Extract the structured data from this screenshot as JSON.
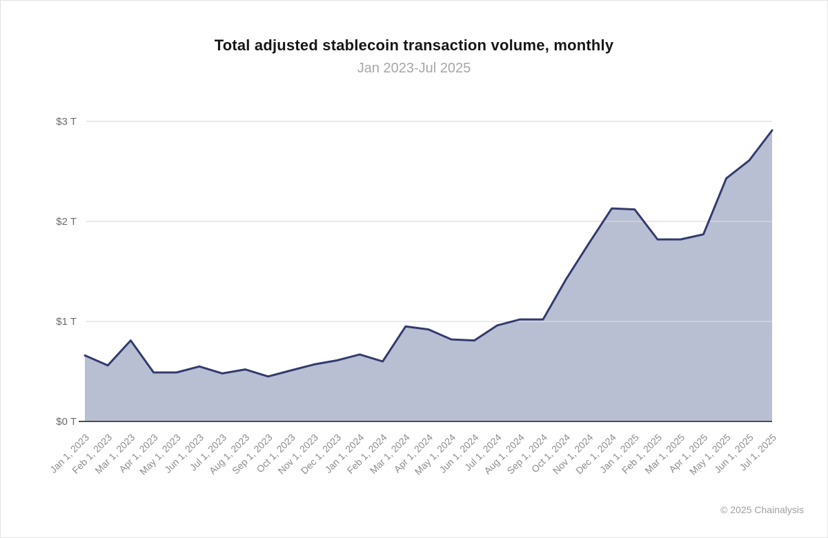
{
  "header": {
    "title": "Total adjusted stablecoin transaction volume, monthly",
    "subtitle": "Jan 2023-Jul 2025"
  },
  "footer": {
    "copyright": "© 2025 Chainalysis"
  },
  "chart_data": {
    "type": "area",
    "title": "Total adjusted stablecoin transaction volume, monthly",
    "subtitle": "Jan 2023-Jul 2025",
    "categories": [
      "Jan 1, 2023",
      "Feb 1, 2023",
      "Mar 1, 2023",
      "Apr 1, 2023",
      "May 1, 2023",
      "Jun 1, 2023",
      "Jul 1, 2023",
      "Aug 1, 2023",
      "Sep 1, 2023",
      "Oct 1, 2023",
      "Nov 1, 2023",
      "Dec 1, 2023",
      "Jan 1, 2024",
      "Feb 1, 2024",
      "Mar 1, 2024",
      "Apr 1, 2024",
      "May 1, 2024",
      "Jun 1, 2024",
      "Jul 1, 2024",
      "Aug 1, 2024",
      "Sep 1, 2024",
      "Oct 1, 2024",
      "Nov 1, 2024",
      "Dec 1, 2024",
      "Jan 1, 2025",
      "Feb 1, 2025",
      "Mar 1, 2025",
      "Apr 1, 2025",
      "May 1, 2025",
      "Jun 1, 2025",
      "Jul 1, 2025"
    ],
    "values": [
      0.66,
      0.56,
      0.81,
      0.49,
      0.49,
      0.55,
      0.48,
      0.52,
      0.45,
      0.51,
      0.57,
      0.61,
      0.67,
      0.6,
      0.95,
      0.92,
      0.82,
      0.81,
      0.96,
      1.02,
      1.02,
      1.42,
      1.78,
      2.13,
      2.12,
      1.82,
      1.82,
      1.87,
      2.43,
      2.61,
      2.91
    ],
    "y_ticks": [
      "$0 T",
      "$1 T",
      "$2 T",
      "$3 T"
    ],
    "ylim": [
      0,
      3
    ],
    "xlabel": "",
    "ylabel": "",
    "grid": true,
    "legend_position": "none",
    "colors": {
      "line": "#323b6e",
      "fill": "#b9bfd3",
      "gridline": "#d9d9d9",
      "baseline": "#4d4d4d",
      "y_label_text": "#6b6b6b",
      "x_label_text": "#8c8c8c"
    }
  }
}
